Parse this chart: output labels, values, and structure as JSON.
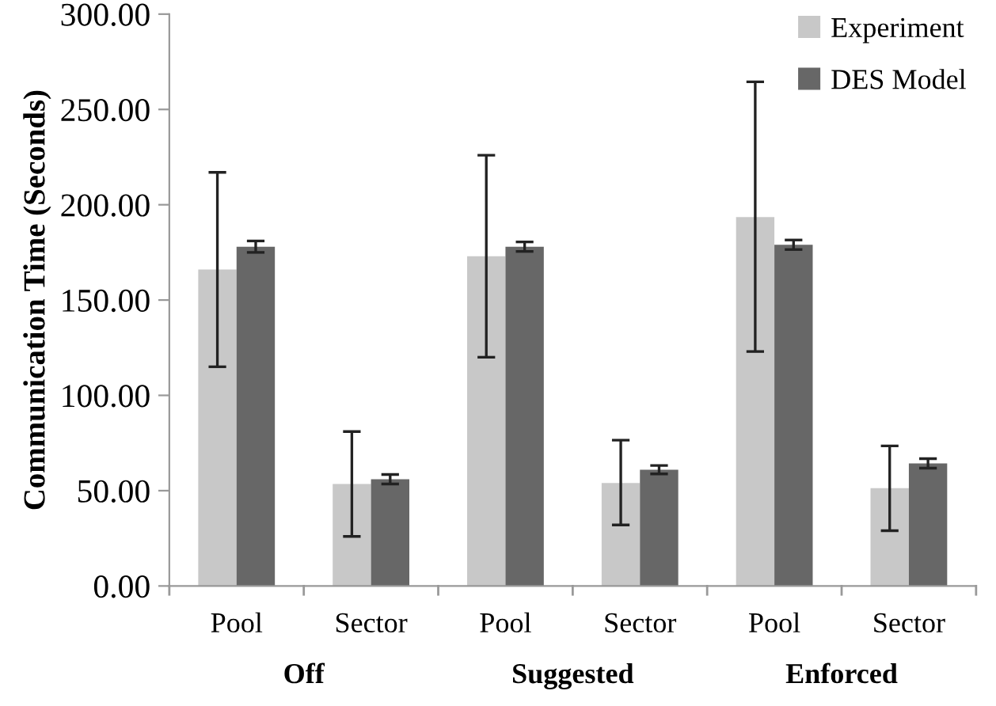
{
  "chart_data": {
    "type": "bar",
    "ylabel": "Communication Time (Seconds)",
    "categories": [
      "Pool",
      "Sector",
      "Pool",
      "Sector",
      "Pool",
      "Sector"
    ],
    "series": [
      {
        "name": "Experiment",
        "color": "#c8c8c8",
        "values": [
          166,
          53.5,
          173,
          54,
          193.5,
          51.3
        ],
        "errors": [
          [
            115,
            217
          ],
          [
            26,
            81
          ],
          [
            120,
            226
          ],
          [
            32,
            76.5
          ],
          [
            123,
            264.5
          ],
          [
            29,
            73.5
          ]
        ]
      },
      {
        "name": "DES Model",
        "color": "#676767",
        "values": [
          178,
          56,
          178,
          61,
          179,
          64.3
        ],
        "errors": [
          3,
          2.5,
          2.5,
          2.2,
          2.5,
          2.5
        ]
      }
    ],
    "annotations": [
      "Off",
      "Suggested",
      "Enforced"
    ],
    "ylim": [
      0,
      300
    ],
    "yticks": [
      {
        "value": 0,
        "label": "0.00"
      },
      {
        "value": 50,
        "label": "50.00"
      },
      {
        "value": 100,
        "label": "100.00"
      },
      {
        "value": 150,
        "label": "150.00"
      },
      {
        "value": 200,
        "label": "200.00"
      },
      {
        "value": 250,
        "label": "250.00"
      },
      {
        "value": 300,
        "label": "300.00"
      }
    ],
    "grid": false,
    "legend": "top right"
  }
}
